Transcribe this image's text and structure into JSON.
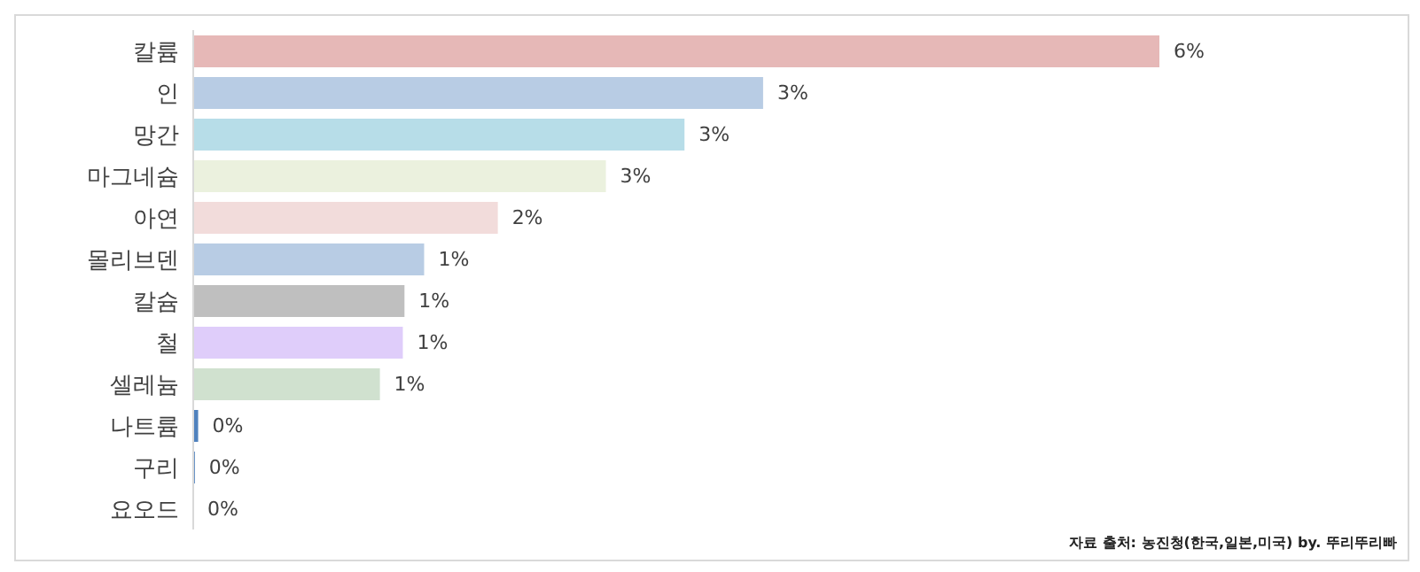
{
  "chart_data": {
    "type": "bar",
    "orientation": "horizontal",
    "categories": [
      "칼륨",
      "인",
      "망간",
      "마그네슘",
      "아연",
      "몰리브덴",
      "칼슘",
      "철",
      "셀레늄",
      "나트륨",
      "구리",
      "요오드"
    ],
    "values": [
      5.9,
      3.48,
      3.0,
      2.52,
      1.86,
      1.41,
      1.29,
      1.28,
      1.14,
      0.03,
      0.01,
      0
    ],
    "value_labels": [
      "6%",
      "3%",
      "3%",
      "3%",
      "2%",
      "1%",
      "1%",
      "1%",
      "1%",
      "0%",
      "0%",
      "0%"
    ],
    "colors": [
      "#e6b8b7",
      "#b8cce4",
      "#b7dde8",
      "#ebf1de",
      "#f2dcdb",
      "#b8cce4",
      "#bfbfbf",
      "#dfcdfa",
      "#d0e1cf",
      "#4f81bd",
      "#4f81bd",
      "#4f81bd"
    ],
    "annotations": [
      "자료 출처: 농진청(한국,일본,미국) by. 뚜리뚜리빠"
    ],
    "grid": false,
    "legend": false
  }
}
